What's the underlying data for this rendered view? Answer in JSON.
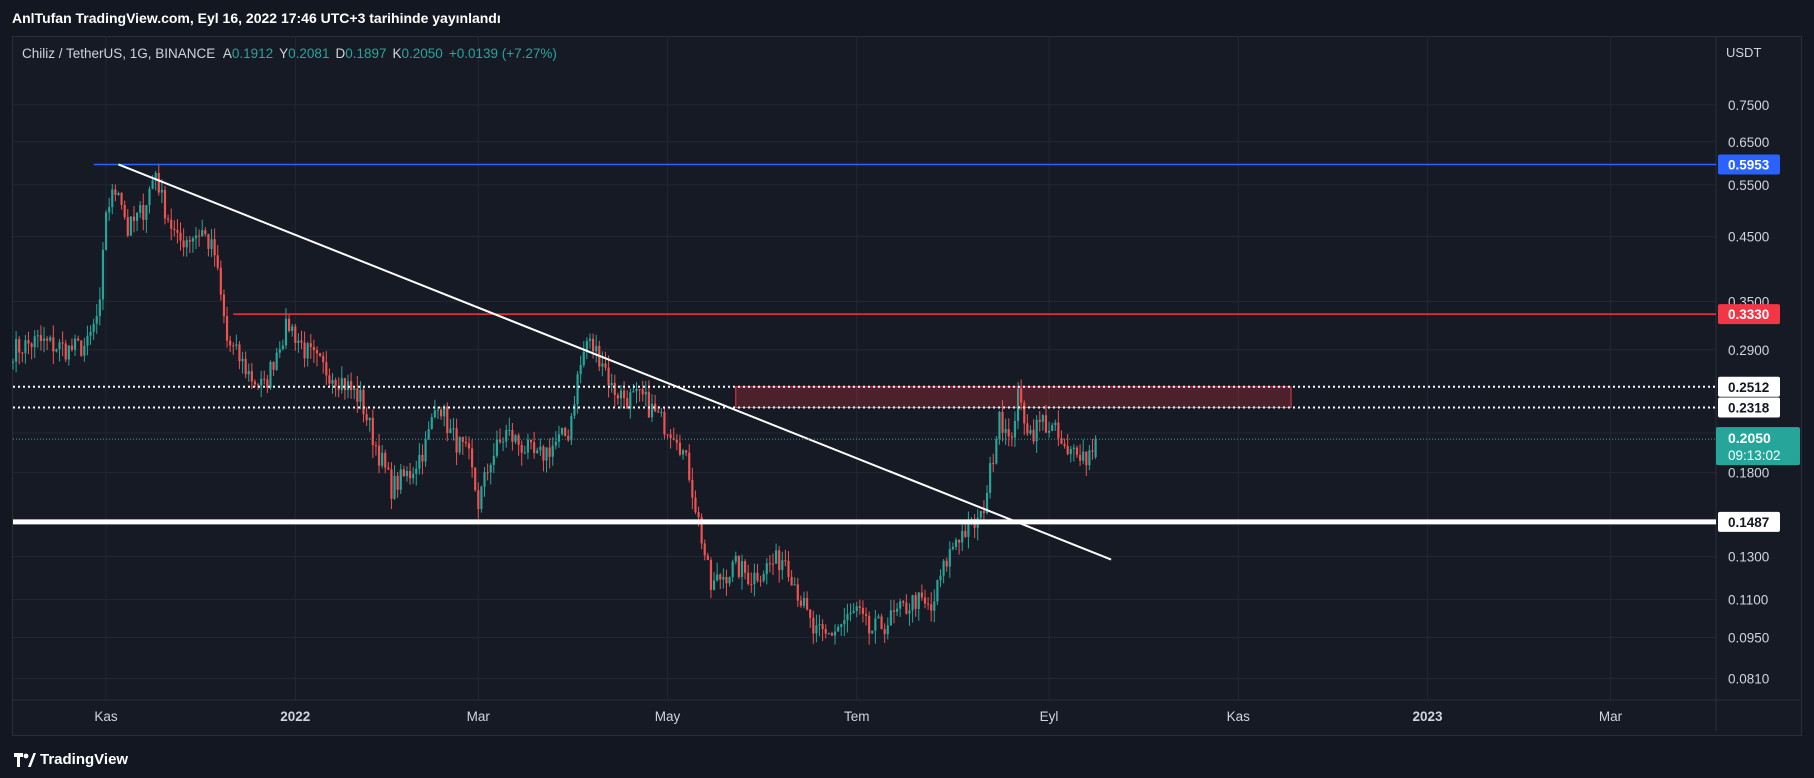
{
  "header": {
    "publisher_line": "AnlTufan TradingView.com, Eyl 16, 2022 17:46 UTC+3 tarihinde yayınlandı"
  },
  "legend": {
    "symbol": "Chiliz / TetherUS, 1G, BINANCE",
    "open_label": "A",
    "open": "0.1912",
    "high_label": "Y",
    "high": "0.2081",
    "low_label": "D",
    "low": "0.1897",
    "close_label": "K",
    "close": "0.2050",
    "change": "+0.0139 (+7.27%)"
  },
  "footer": {
    "brand": "TradingView"
  },
  "colors": {
    "background": "#161a25",
    "grid": "#232733",
    "up": "#26a69a",
    "down": "#ef5350",
    "blue_level": "#2962ff",
    "red_level": "#f23645",
    "white": "#ffffff"
  },
  "chart_data": {
    "type": "candlestick",
    "symbol": "CHZ/USDT",
    "interval": "1D",
    "y_unit": "USDT",
    "y_scale": "log",
    "ylim": [
      0.0745,
      0.98
    ],
    "x_range": [
      "2021-10-02",
      "2023-04-04"
    ],
    "y_ticks": [
      "0.7500",
      "0.6500",
      "0.5500",
      "0.4500",
      "0.3500",
      "0.2900",
      "0.2100",
      "0.1800",
      "0.1300",
      "0.1100",
      "0.0950",
      "0.0810"
    ],
    "x_ticks": [
      {
        "label": "Kas",
        "date": "2021-11-01"
      },
      {
        "label": "2022",
        "date": "2022-01-01"
      },
      {
        "label": "Mar",
        "date": "2022-03-01"
      },
      {
        "label": "May",
        "date": "2022-05-01"
      },
      {
        "label": "Tem",
        "date": "2022-07-01"
      },
      {
        "label": "Eyl",
        "date": "2022-09-01"
      },
      {
        "label": "Kas",
        "date": "2022-11-01"
      },
      {
        "label": "2023",
        "date": "2023-01-01"
      },
      {
        "label": "Mar",
        "date": "2023-03-01"
      }
    ],
    "anchors": [
      [
        "2021-10-02",
        0.29
      ],
      [
        "2021-10-10",
        0.3
      ],
      [
        "2021-10-20",
        0.29
      ],
      [
        "2021-10-26",
        0.295
      ],
      [
        "2021-10-30",
        0.34
      ],
      [
        "2021-11-01",
        0.5
      ],
      [
        "2021-11-05",
        0.55
      ],
      [
        "2021-11-08",
        0.46
      ],
      [
        "2021-11-13",
        0.5
      ],
      [
        "2021-11-17",
        0.58
      ],
      [
        "2021-11-19",
        0.52
      ],
      [
        "2021-11-24",
        0.44
      ],
      [
        "2021-11-28",
        0.45
      ],
      [
        "2021-12-02",
        0.46
      ],
      [
        "2021-12-06",
        0.42
      ],
      [
        "2021-12-10",
        0.3
      ],
      [
        "2021-12-14",
        0.28
      ],
      [
        "2021-12-18",
        0.26
      ],
      [
        "2021-12-22",
        0.25
      ],
      [
        "2021-12-27",
        0.3
      ],
      [
        "2021-12-30",
        0.32
      ],
      [
        "2022-01-04",
        0.29
      ],
      [
        "2022-01-10",
        0.27
      ],
      [
        "2022-01-15",
        0.26
      ],
      [
        "2022-01-22",
        0.24
      ],
      [
        "2022-01-27",
        0.2
      ],
      [
        "2022-02-01",
        0.17
      ],
      [
        "2022-02-07",
        0.18
      ],
      [
        "2022-02-12",
        0.2
      ],
      [
        "2022-02-16",
        0.24
      ],
      [
        "2022-02-20",
        0.21
      ],
      [
        "2022-02-26",
        0.19
      ],
      [
        "2022-03-01",
        0.16
      ],
      [
        "2022-03-05",
        0.19
      ],
      [
        "2022-03-10",
        0.21
      ],
      [
        "2022-03-15",
        0.2
      ],
      [
        "2022-03-20",
        0.19
      ],
      [
        "2022-03-25",
        0.2
      ],
      [
        "2022-03-30",
        0.21
      ],
      [
        "2022-04-02",
        0.26
      ],
      [
        "2022-04-05",
        0.3
      ],
      [
        "2022-04-10",
        0.28
      ],
      [
        "2022-04-13",
        0.25
      ],
      [
        "2022-04-18",
        0.24
      ],
      [
        "2022-04-23",
        0.24
      ],
      [
        "2022-04-29",
        0.22
      ],
      [
        "2022-05-04",
        0.21
      ],
      [
        "2022-05-08",
        0.18
      ],
      [
        "2022-05-12",
        0.14
      ],
      [
        "2022-05-15",
        0.115
      ],
      [
        "2022-05-18",
        0.12
      ],
      [
        "2022-05-23",
        0.125
      ],
      [
        "2022-05-28",
        0.12
      ],
      [
        "2022-06-02",
        0.125
      ],
      [
        "2022-06-08",
        0.13
      ],
      [
        "2022-06-13",
        0.11
      ],
      [
        "2022-06-17",
        0.097
      ],
      [
        "2022-06-21",
        0.095
      ],
      [
        "2022-06-26",
        0.1
      ],
      [
        "2022-07-01",
        0.105
      ],
      [
        "2022-07-05",
        0.097
      ],
      [
        "2022-07-10",
        0.1
      ],
      [
        "2022-07-15",
        0.105
      ],
      [
        "2022-07-20",
        0.11
      ],
      [
        "2022-07-25",
        0.105
      ],
      [
        "2022-07-28",
        0.12
      ],
      [
        "2022-08-02",
        0.14
      ],
      [
        "2022-08-06",
        0.145
      ],
      [
        "2022-08-10",
        0.15
      ],
      [
        "2022-08-13",
        0.18
      ],
      [
        "2022-08-16",
        0.23
      ],
      [
        "2022-08-19",
        0.2
      ],
      [
        "2022-08-22",
        0.24
      ],
      [
        "2022-08-26",
        0.21
      ],
      [
        "2022-08-30",
        0.22
      ],
      [
        "2022-09-03",
        0.21
      ],
      [
        "2022-09-07",
        0.19
      ],
      [
        "2022-09-10",
        0.2
      ],
      [
        "2022-09-13",
        0.19
      ],
      [
        "2022-09-16",
        0.205
      ]
    ],
    "last_candle": {
      "date": "2022-09-16",
      "open": 0.1912,
      "high": 0.2081,
      "low": 0.1897,
      "close": 0.205
    },
    "horizontal_levels": [
      {
        "value": 0.5953,
        "label": "0.5953",
        "color": "#2962ff",
        "style": "solid",
        "from": "2021-10-28"
      },
      {
        "value": 0.333,
        "label": "0.3330",
        "color": "#f23645",
        "style": "solid",
        "from": "2021-12-12"
      },
      {
        "value": 0.2512,
        "label": "0.2512",
        "color": "#ffffff",
        "style": "dotted",
        "from": "2021-10-02"
      },
      {
        "value": 0.2318,
        "label": "0.2318",
        "color": "#ffffff",
        "style": "dotted",
        "from": "2021-10-02"
      },
      {
        "value": 0.1487,
        "label": "0.1487",
        "color": "#ffffff",
        "style": "solid-thick",
        "from": "2021-10-02"
      }
    ],
    "trendline": {
      "from": [
        "2021-11-05",
        0.5953
      ],
      "to": [
        "2022-09-21",
        0.1285
      ]
    },
    "resistance_zone": {
      "from": "2022-05-23",
      "to": "2022-11-18",
      "top": 0.2512,
      "bottom": 0.2318
    },
    "price_label": {
      "value": "0.2050",
      "countdown": "09:13:02"
    }
  }
}
